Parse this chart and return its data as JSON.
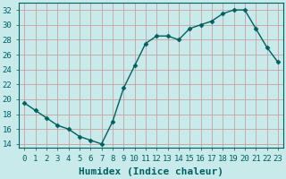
{
  "x": [
    0,
    1,
    2,
    3,
    4,
    5,
    6,
    7,
    8,
    9,
    10,
    11,
    12,
    13,
    14,
    15,
    16,
    17,
    18,
    19,
    20,
    21,
    22,
    23
  ],
  "y": [
    19.5,
    18.5,
    17.5,
    16.5,
    16,
    15,
    14.5,
    14,
    17,
    21.5,
    24.5,
    27.5,
    28.5,
    28.5,
    28,
    29.5,
    30,
    30.5,
    31.5,
    32,
    32,
    29.5,
    27,
    25
  ],
  "line_color": "#006060",
  "marker": "D",
  "marker_size": 2.5,
  "bg_color": "#c8eaea",
  "grid_color": "#c8a0a0",
  "xlabel": "Humidex (Indice chaleur)",
  "xlabel_fontsize": 8,
  "ylabel_ticks": [
    14,
    16,
    18,
    20,
    22,
    24,
    26,
    28,
    30,
    32
  ],
  "xtick_labels": [
    "0",
    "1",
    "2",
    "3",
    "4",
    "5",
    "6",
    "7",
    "8",
    "9",
    "10",
    "11",
    "12",
    "13",
    "14",
    "15",
    "16",
    "17",
    "18",
    "19",
    "20",
    "21",
    "22",
    "23"
  ],
  "ylim": [
    13.5,
    33
  ],
  "xlim": [
    -0.5,
    23.5
  ],
  "tick_fontsize": 6.5,
  "line_width": 1.0,
  "spine_color": "#006060"
}
